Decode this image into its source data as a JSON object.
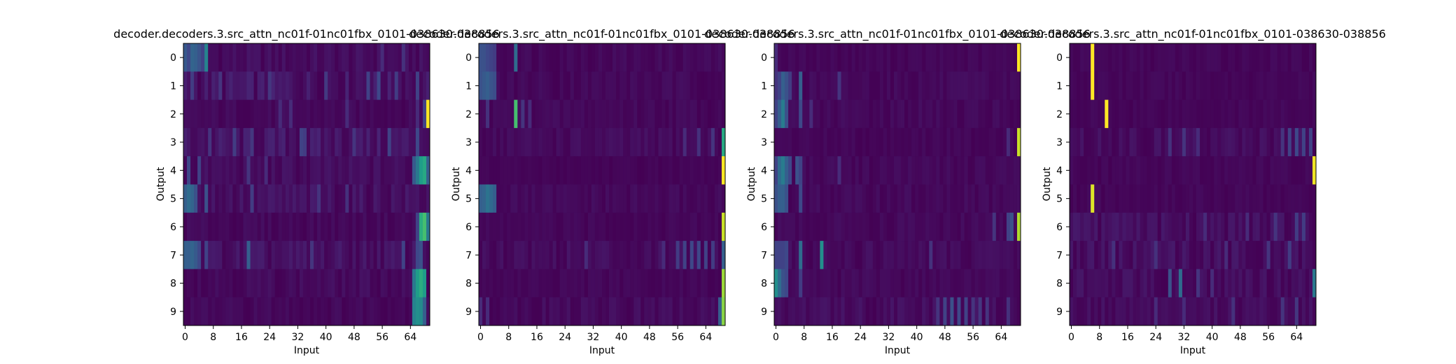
{
  "figure": {
    "colormap": "viridis",
    "colormap_stops": [
      "#440154",
      "#482878",
      "#3e4989",
      "#31688e",
      "#26828e",
      "#1f9e89",
      "#35b779",
      "#6ece58",
      "#b5de2b",
      "#fde725"
    ]
  },
  "chart_data": [
    {
      "type": "heatmap",
      "title": "decoder.decoders.3.src_attn_nc01f-01nc01fbx_0101-038630-038856",
      "xlabel": "Input",
      "ylabel": "Output",
      "x_ticks": [
        0,
        8,
        16,
        24,
        32,
        40,
        48,
        56,
        64
      ],
      "y_ticks": [
        0,
        1,
        2,
        3,
        4,
        5,
        6,
        7,
        8,
        9
      ],
      "n_inputs": 70,
      "n_outputs": 10,
      "rows": [
        {
          "output": 0,
          "noise": 0.06,
          "peaks": [
            [
              0,
              0.28
            ],
            [
              1,
              0.22
            ],
            [
              2,
              0.32
            ],
            [
              3,
              0.3
            ],
            [
              4,
              0.26
            ],
            [
              5,
              0.2
            ],
            [
              6,
              0.45
            ],
            [
              56,
              0.12
            ],
            [
              62,
              0.14
            ]
          ]
        },
        {
          "output": 1,
          "noise": 0.1,
          "peaks": [
            [
              2,
              0.18
            ],
            [
              10,
              0.15
            ],
            [
              24,
              0.16
            ],
            [
              40,
              0.17
            ],
            [
              52,
              0.2
            ],
            [
              55,
              0.22
            ],
            [
              60,
              0.18
            ],
            [
              66,
              0.2
            ]
          ]
        },
        {
          "output": 2,
          "noise": 0.04,
          "peaks": [
            [
              27,
              0.12
            ],
            [
              30,
              0.12
            ],
            [
              46,
              0.12
            ],
            [
              66,
              0.12
            ],
            [
              68,
              0.2
            ],
            [
              69,
              1.0
            ]
          ]
        },
        {
          "output": 3,
          "noise": 0.1,
          "peaks": [
            [
              7,
              0.15
            ],
            [
              14,
              0.18
            ],
            [
              19,
              0.16
            ],
            [
              33,
              0.2
            ],
            [
              34,
              0.18
            ],
            [
              48,
              0.15
            ],
            [
              58,
              0.2
            ],
            [
              66,
              0.22
            ]
          ]
        },
        {
          "output": 4,
          "noise": 0.06,
          "peaks": [
            [
              1,
              0.22
            ],
            [
              4,
              0.2
            ],
            [
              18,
              0.15
            ],
            [
              23,
              0.12
            ],
            [
              65,
              0.28
            ],
            [
              66,
              0.4
            ],
            [
              67,
              0.55
            ],
            [
              68,
              0.6
            ],
            [
              69,
              0.3
            ]
          ]
        },
        {
          "output": 5,
          "noise": 0.08,
          "peaks": [
            [
              0,
              0.3
            ],
            [
              1,
              0.35
            ],
            [
              2,
              0.32
            ],
            [
              3,
              0.25
            ],
            [
              6,
              0.25
            ],
            [
              19,
              0.18
            ],
            [
              38,
              0.15
            ],
            [
              46,
              0.14
            ]
          ]
        },
        {
          "output": 6,
          "noise": 0.04,
          "peaks": [
            [
              66,
              0.2
            ],
            [
              67,
              0.62
            ],
            [
              68,
              0.7
            ],
            [
              69,
              0.4
            ]
          ]
        },
        {
          "output": 7,
          "noise": 0.08,
          "peaks": [
            [
              0,
              0.3
            ],
            [
              1,
              0.3
            ],
            [
              2,
              0.32
            ],
            [
              3,
              0.28
            ],
            [
              4,
              0.22
            ],
            [
              6,
              0.2
            ],
            [
              18,
              0.3
            ],
            [
              36,
              0.15
            ],
            [
              62,
              0.2
            ],
            [
              66,
              0.22
            ],
            [
              67,
              0.25
            ]
          ]
        },
        {
          "output": 8,
          "noise": 0.05,
          "peaks": [
            [
              65,
              0.4
            ],
            [
              66,
              0.55
            ],
            [
              67,
              0.62
            ],
            [
              68,
              0.55
            ]
          ]
        },
        {
          "output": 9,
          "noise": 0.04,
          "peaks": [
            [
              65,
              0.45
            ],
            [
              66,
              0.5
            ],
            [
              67,
              0.48
            ],
            [
              68,
              0.3
            ]
          ]
        }
      ]
    },
    {
      "type": "heatmap",
      "title": "decoder.decoders.3.src_attn_nc01f-01nc01fbx_0101-038630-038856",
      "xlabel": "Input",
      "ylabel": "Output",
      "x_ticks": [
        0,
        8,
        16,
        24,
        32,
        40,
        48,
        56,
        64
      ],
      "y_ticks": [
        0,
        1,
        2,
        3,
        4,
        5,
        6,
        7,
        8,
        9
      ],
      "n_inputs": 70,
      "n_outputs": 10,
      "rows": [
        {
          "output": 0,
          "noise": 0.04,
          "peaks": [
            [
              0,
              0.25
            ],
            [
              1,
              0.25
            ],
            [
              2,
              0.22
            ],
            [
              3,
              0.2
            ],
            [
              4,
              0.18
            ],
            [
              10,
              0.35
            ]
          ]
        },
        {
          "output": 1,
          "noise": 0.04,
          "peaks": [
            [
              0,
              0.25
            ],
            [
              1,
              0.28
            ],
            [
              2,
              0.3
            ],
            [
              3,
              0.26
            ],
            [
              4,
              0.24
            ]
          ]
        },
        {
          "output": 2,
          "noise": 0.04,
          "peaks": [
            [
              2,
              0.14
            ],
            [
              10,
              0.7
            ],
            [
              12,
              0.15
            ],
            [
              14,
              0.12
            ]
          ]
        },
        {
          "output": 3,
          "noise": 0.05,
          "peaks": [
            [
              58,
              0.12
            ],
            [
              62,
              0.14
            ],
            [
              66,
              0.15
            ],
            [
              69,
              0.6
            ]
          ]
        },
        {
          "output": 4,
          "noise": 0.02,
          "peaks": [
            [
              69,
              1.0
            ]
          ]
        },
        {
          "output": 5,
          "noise": 0.04,
          "peaks": [
            [
              0,
              0.3
            ],
            [
              1,
              0.32
            ],
            [
              2,
              0.38
            ],
            [
              3,
              0.34
            ],
            [
              4,
              0.3
            ]
          ]
        },
        {
          "output": 6,
          "noise": 0.03,
          "peaks": [
            [
              69,
              0.92
            ]
          ]
        },
        {
          "output": 7,
          "noise": 0.06,
          "peaks": [
            [
              30,
              0.12
            ],
            [
              52,
              0.12
            ],
            [
              56,
              0.18
            ],
            [
              58,
              0.2
            ],
            [
              60,
              0.22
            ],
            [
              62,
              0.22
            ],
            [
              64,
              0.2
            ],
            [
              66,
              0.18
            ],
            [
              69,
              0.3
            ]
          ]
        },
        {
          "output": 8,
          "noise": 0.03,
          "peaks": [
            [
              69,
              0.85
            ]
          ]
        },
        {
          "output": 9,
          "noise": 0.05,
          "peaks": [
            [
              0,
              0.12
            ],
            [
              2,
              0.12
            ],
            [
              68,
              0.3
            ],
            [
              69,
              0.82
            ]
          ]
        }
      ]
    },
    {
      "type": "heatmap",
      "title": "decoder.decoders.3.src_attn_nc01f-01nc01fbx_0101-038630-038856",
      "xlabel": "Input",
      "ylabel": "Output",
      "x_ticks": [
        0,
        8,
        16,
        24,
        32,
        40,
        48,
        56,
        64
      ],
      "y_ticks": [
        0,
        1,
        2,
        3,
        4,
        5,
        6,
        7,
        8,
        9
      ],
      "n_inputs": 70,
      "n_outputs": 10,
      "rows": [
        {
          "output": 0,
          "noise": 0.03,
          "peaks": [
            [
              0,
              0.12
            ],
            [
              69,
              1.0
            ]
          ]
        },
        {
          "output": 1,
          "noise": 0.04,
          "peaks": [
            [
              0,
              0.15
            ],
            [
              1,
              0.2
            ],
            [
              2,
              0.3
            ],
            [
              3,
              0.25
            ],
            [
              4,
              0.18
            ],
            [
              7,
              0.3
            ],
            [
              18,
              0.15
            ]
          ]
        },
        {
          "output": 2,
          "noise": 0.04,
          "peaks": [
            [
              0,
              0.2
            ],
            [
              1,
              0.3
            ],
            [
              2,
              0.42
            ],
            [
              3,
              0.25
            ],
            [
              7,
              0.22
            ],
            [
              10,
              0.12
            ]
          ]
        },
        {
          "output": 3,
          "noise": 0.03,
          "peaks": [
            [
              66,
              0.12
            ],
            [
              69,
              0.92
            ]
          ]
        },
        {
          "output": 4,
          "noise": 0.04,
          "peaks": [
            [
              0,
              0.2
            ],
            [
              1,
              0.35
            ],
            [
              2,
              0.42
            ],
            [
              3,
              0.3
            ],
            [
              4,
              0.22
            ],
            [
              6,
              0.25
            ],
            [
              7,
              0.2
            ],
            [
              18,
              0.12
            ]
          ]
        },
        {
          "output": 5,
          "noise": 0.04,
          "peaks": [
            [
              0,
              0.25
            ],
            [
              1,
              0.3
            ],
            [
              2,
              0.3
            ],
            [
              3,
              0.25
            ],
            [
              7,
              0.22
            ]
          ]
        },
        {
          "output": 6,
          "noise": 0.04,
          "peaks": [
            [
              62,
              0.15
            ],
            [
              66,
              0.2
            ],
            [
              67,
              0.25
            ],
            [
              69,
              0.88
            ]
          ]
        },
        {
          "output": 7,
          "noise": 0.05,
          "peaks": [
            [
              0,
              0.2
            ],
            [
              1,
              0.2
            ],
            [
              2,
              0.2
            ],
            [
              3,
              0.22
            ],
            [
              7,
              0.35
            ],
            [
              13,
              0.5
            ],
            [
              44,
              0.14
            ]
          ]
        },
        {
          "output": 8,
          "noise": 0.04,
          "peaks": [
            [
              0,
              0.5
            ],
            [
              1,
              0.35
            ],
            [
              2,
              0.25
            ],
            [
              3,
              0.22
            ],
            [
              7,
              0.18
            ]
          ]
        },
        {
          "output": 9,
          "noise": 0.06,
          "peaks": [
            [
              46,
              0.15
            ],
            [
              48,
              0.2
            ],
            [
              50,
              0.25
            ],
            [
              52,
              0.22
            ],
            [
              54,
              0.2
            ],
            [
              56,
              0.15
            ],
            [
              58,
              0.16
            ],
            [
              60,
              0.15
            ],
            [
              66,
              0.14
            ]
          ]
        }
      ]
    },
    {
      "type": "heatmap",
      "title": "decoder.decoders.3.src_attn_nc01f-01nc01fbx_0101-038630-038856",
      "xlabel": "Input",
      "ylabel": "Output",
      "x_ticks": [
        0,
        8,
        16,
        24,
        32,
        40,
        48,
        56,
        64
      ],
      "y_ticks": [
        0,
        1,
        2,
        3,
        4,
        5,
        6,
        7,
        8,
        9
      ],
      "n_inputs": 70,
      "n_outputs": 10,
      "rows": [
        {
          "output": 0,
          "noise": 0.03,
          "peaks": [
            [
              6,
              1.0
            ]
          ]
        },
        {
          "output": 1,
          "noise": 0.03,
          "peaks": [
            [
              6,
              1.0
            ]
          ]
        },
        {
          "output": 2,
          "noise": 0.03,
          "peaks": [
            [
              10,
              1.0
            ]
          ]
        },
        {
          "output": 3,
          "noise": 0.06,
          "peaks": [
            [
              28,
              0.14
            ],
            [
              32,
              0.15
            ],
            [
              36,
              0.12
            ],
            [
              60,
              0.15
            ],
            [
              62,
              0.2
            ],
            [
              64,
              0.22
            ],
            [
              66,
              0.2
            ],
            [
              68,
              0.2
            ]
          ]
        },
        {
          "output": 4,
          "noise": 0.03,
          "peaks": [
            [
              69,
              0.98
            ]
          ]
        },
        {
          "output": 5,
          "noise": 0.03,
          "peaks": [
            [
              6,
              0.95
            ]
          ]
        },
        {
          "output": 6,
          "noise": 0.07,
          "peaks": [
            [
              38,
              0.12
            ],
            [
              50,
              0.12
            ],
            [
              58,
              0.15
            ],
            [
              64,
              0.18
            ],
            [
              66,
              0.18
            ]
          ]
        },
        {
          "output": 7,
          "noise": 0.07,
          "peaks": [
            [
              12,
              0.14
            ],
            [
              24,
              0.14
            ],
            [
              44,
              0.12
            ],
            [
              56,
              0.15
            ],
            [
              62,
              0.18
            ]
          ]
        },
        {
          "output": 8,
          "noise": 0.06,
          "peaks": [
            [
              28,
              0.25
            ],
            [
              31,
              0.35
            ],
            [
              36,
              0.15
            ],
            [
              40,
              0.12
            ],
            [
              69,
              0.4
            ]
          ]
        },
        {
          "output": 9,
          "noise": 0.06,
          "peaks": [
            [
              24,
              0.12
            ],
            [
              32,
              0.12
            ],
            [
              46,
              0.14
            ],
            [
              60,
              0.15
            ],
            [
              64,
              0.16
            ]
          ]
        }
      ]
    }
  ]
}
